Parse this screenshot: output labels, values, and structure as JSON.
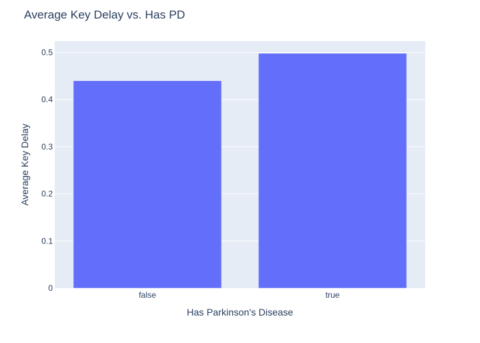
{
  "chart_data": {
    "type": "bar",
    "title": "Average Key Delay vs. Has PD",
    "xlabel": "Has Parkinson's Disease",
    "ylabel": "Average Key Delay",
    "categories": [
      "false",
      "true"
    ],
    "values": [
      0.44,
      0.498
    ],
    "ylim": [
      0,
      0.524
    ],
    "yticks": [
      0,
      0.1,
      0.2,
      0.3,
      0.4,
      0.5
    ],
    "ytick_labels": [
      "0",
      "0.1",
      "0.2",
      "0.3",
      "0.4",
      "0.5"
    ],
    "grid": true,
    "legend": "none",
    "colors": {
      "bar": "#636efa",
      "plot_background": "#e5ecf6",
      "grid": "#ffffff",
      "text": "#2a3f5f"
    }
  }
}
